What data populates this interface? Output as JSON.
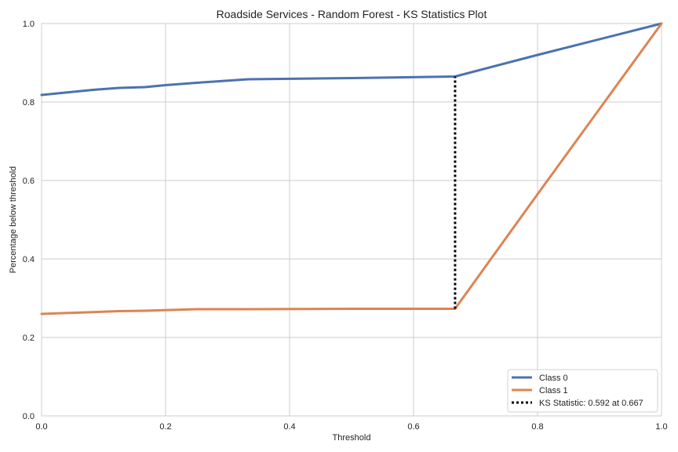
{
  "chart_data": {
    "type": "line",
    "title": "Roadside Services - Random Forest - KS Statistics Plot",
    "xlabel": "Threshold",
    "ylabel": "Percentage below threshold",
    "xlim": [
      0,
      1
    ],
    "ylim": [
      0,
      1
    ],
    "grid": true,
    "legend_position": "bottom-right",
    "x_ticks": [
      "0.0",
      "0.2",
      "0.4",
      "0.6",
      "0.8",
      "1.0"
    ],
    "y_ticks": [
      "0.0",
      "0.2",
      "0.4",
      "0.6",
      "0.8",
      "1.0"
    ],
    "series": [
      {
        "name": "Class 0",
        "color": "#4c72b0",
        "x": [
          0.0,
          0.083,
          0.125,
          0.167,
          0.2,
          0.25,
          0.333,
          0.5,
          0.667,
          0.8,
          1.0
        ],
        "y": [
          0.818,
          0.831,
          0.836,
          0.838,
          0.843,
          0.849,
          0.858,
          0.861,
          0.865,
          0.92,
          1.0
        ]
      },
      {
        "name": "Class 1",
        "color": "#dd8452",
        "x": [
          0.0,
          0.125,
          0.167,
          0.25,
          0.333,
          0.5,
          0.667,
          0.8,
          1.0
        ],
        "y": [
          0.26,
          0.267,
          0.268,
          0.272,
          0.272,
          0.273,
          0.273,
          0.565,
          1.0
        ]
      }
    ],
    "ks_statistic": {
      "label": "KS Statistic: 0.592 at 0.667",
      "x": 0.667,
      "y_from": 0.273,
      "y_to": 0.865,
      "color": "#000000"
    }
  }
}
